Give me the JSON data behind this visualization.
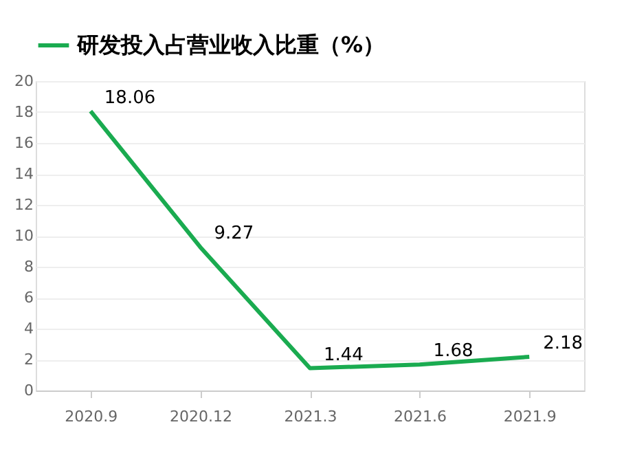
{
  "chart_data": {
    "type": "line",
    "categories": [
      "2020.9",
      "2020.12",
      "2021.3",
      "2021.6",
      "2021.9"
    ],
    "series": [
      {
        "name": "研发投入占营业收入比重（%）",
        "color": "#1aab50",
        "values": [
          18.06,
          9.27,
          1.44,
          1.68,
          2.18
        ]
      }
    ],
    "ylim": [
      0,
      20
    ],
    "yticks": [
      0,
      2,
      4,
      6,
      8,
      10,
      12,
      14,
      16,
      18,
      20
    ],
    "grid": "y",
    "legend": "top",
    "data_labels": true,
    "marker": "none",
    "line_style": "solid"
  }
}
